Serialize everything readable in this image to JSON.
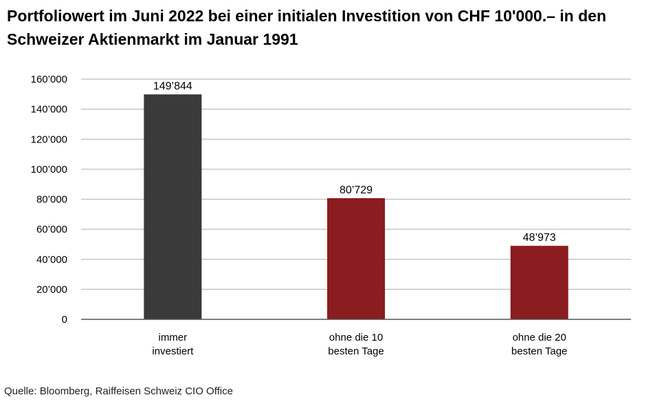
{
  "chart_data": {
    "type": "bar",
    "title": "Portfoliowert im Juni 2022 bei einer initialen Investition von CHF 10'000.– in den Schweizer Aktienmarkt im Januar 1991",
    "categories": [
      [
        "immer",
        "investiert"
      ],
      [
        "ohne die 10",
        "besten Tage"
      ],
      [
        "ohne die 20",
        "besten Tage"
      ]
    ],
    "values": [
      149844,
      80729,
      48973
    ],
    "data_labels": [
      "149’844",
      "80’729",
      "48’973"
    ],
    "bar_colors": [
      "#3a3a3a",
      "#8b1c1f",
      "#8b1c1f"
    ],
    "ylim": [
      0,
      160000
    ],
    "yticks": [
      0,
      20000,
      40000,
      60000,
      80000,
      100000,
      120000,
      140000,
      160000
    ],
    "ytick_labels": [
      "0",
      "20’000",
      "40’000",
      "60’000",
      "80’000",
      "100’000",
      "120’000",
      "140’000",
      "160’000"
    ],
    "grid": true,
    "gridline_color": "#bdbdbd",
    "xlabel": "",
    "ylabel": ""
  },
  "source": "Quelle: Bloomberg, Raiffeisen Schweiz CIO Office"
}
